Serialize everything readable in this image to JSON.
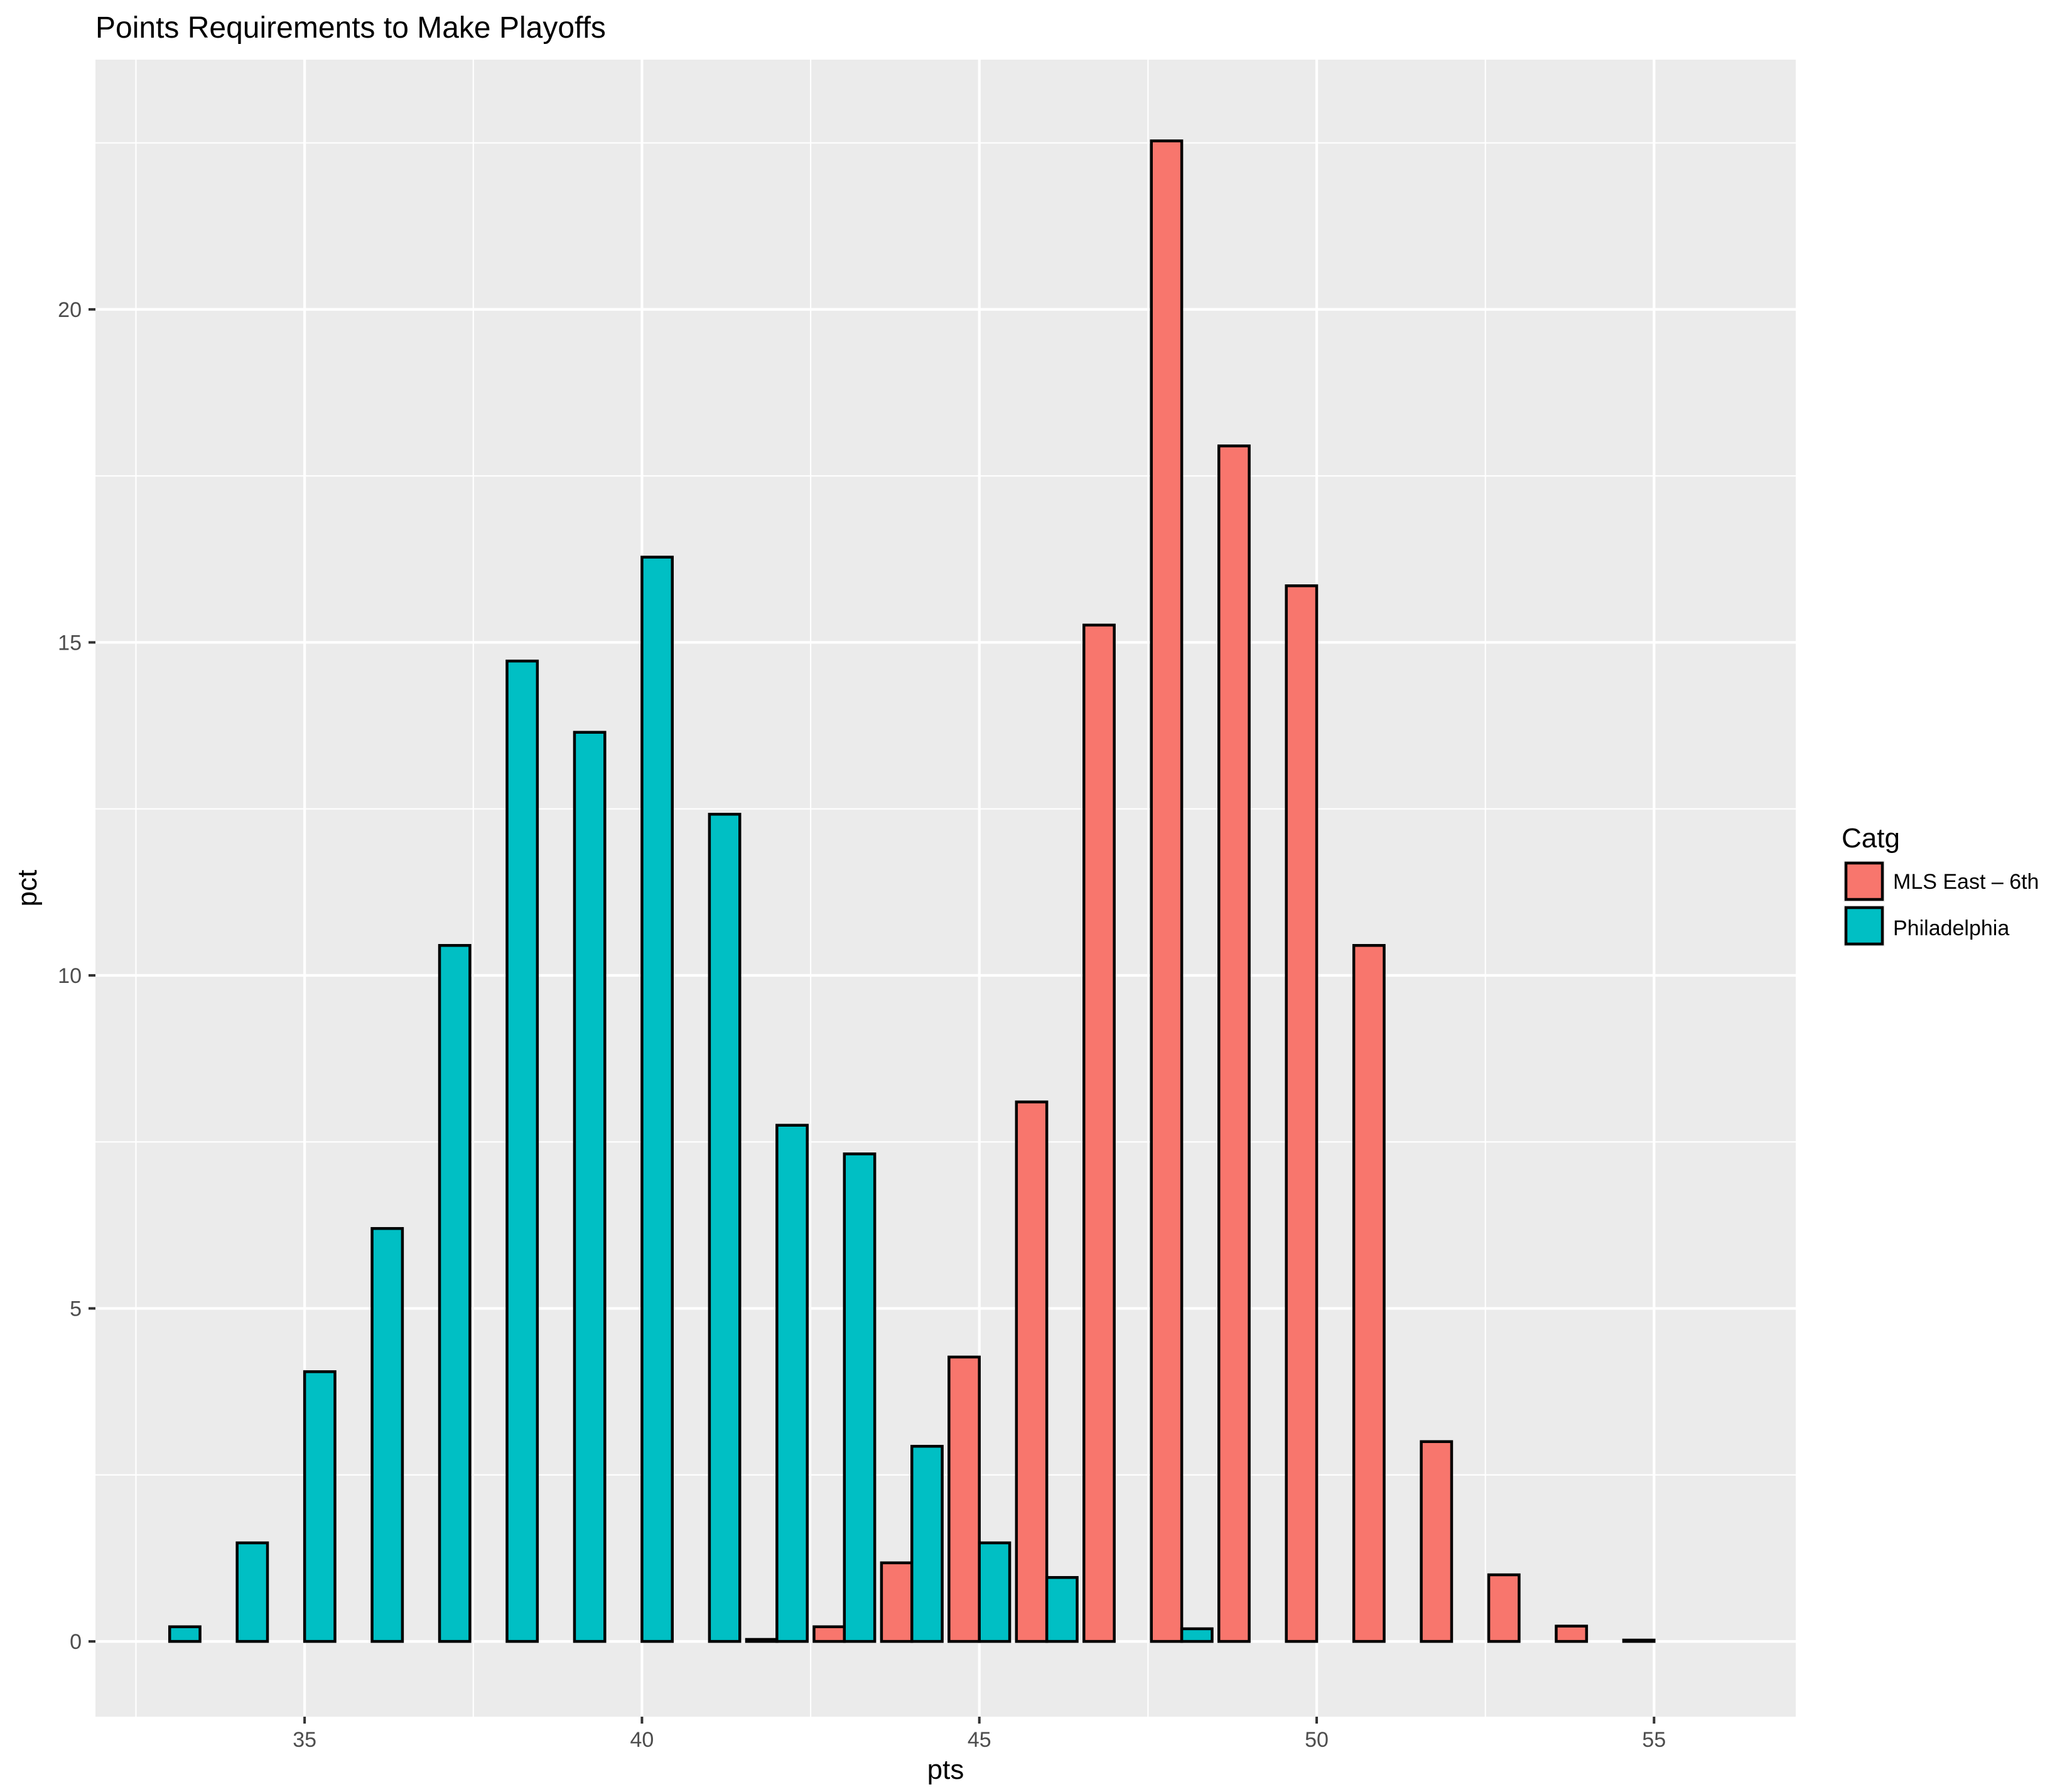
{
  "chart_data": {
    "type": "bar",
    "title": "Points Requirements to Make Playoffs",
    "xlabel": "pts",
    "ylabel": "pct",
    "x": [
      33,
      34,
      35,
      36,
      37,
      38,
      39,
      40,
      41,
      42,
      43,
      44,
      45,
      46,
      47,
      48,
      49,
      50,
      51,
      52,
      53,
      54,
      55
    ],
    "xticks": [
      "35",
      "40",
      "45",
      "50",
      "55"
    ],
    "yticks": [
      "0",
      "5",
      "10",
      "15",
      "20"
    ],
    "xlim": [
      31.9,
      57.1
    ],
    "ylim": [
      -1.13,
      23.75
    ],
    "grid": true,
    "legend": {
      "title": "Catg",
      "position": "right"
    },
    "series": [
      {
        "name": "MLS East – 6th",
        "color": "#F8766D",
        "values": [
          0,
          0,
          0,
          0,
          0,
          0,
          0,
          0,
          0,
          0.03,
          0.22,
          1.18,
          4.27,
          8.1,
          15.26,
          22.53,
          17.95,
          15.85,
          10.45,
          3.0,
          1.0,
          0.23,
          0.02
        ]
      },
      {
        "name": "Philadelphia",
        "color": "#00BFC4",
        "values": [
          0.22,
          1.48,
          4.05,
          6.2,
          10.45,
          14.72,
          13.65,
          16.28,
          12.42,
          7.75,
          7.32,
          2.93,
          1.48,
          0.96,
          0,
          0.19,
          0,
          0,
          0,
          0,
          0,
          0,
          0
        ]
      }
    ]
  }
}
